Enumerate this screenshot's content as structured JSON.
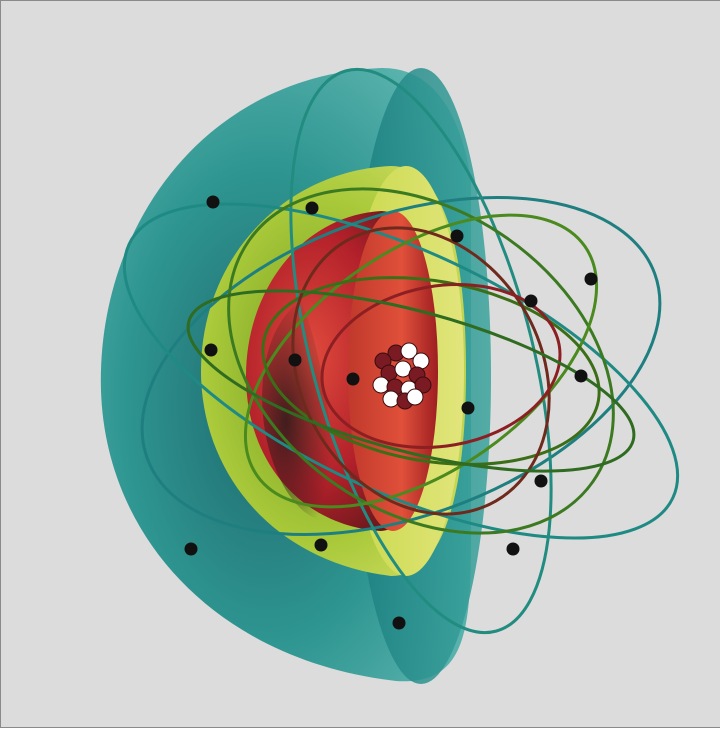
{
  "illustration": {
    "subject": "atom-shell-model",
    "colors": {
      "background": "#dcdcdc",
      "outer_shell": "#1f8f8a",
      "middle_shell": "#b9d23a",
      "inner_shell": "#b2202a",
      "nucleus": "#ffffff",
      "electron": "#111111"
    },
    "nucleons": 14,
    "electrons": 15
  }
}
